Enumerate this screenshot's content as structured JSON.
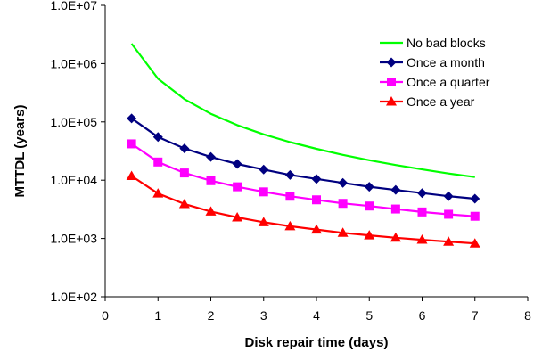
{
  "chart_data": {
    "type": "line",
    "title": "",
    "xlabel": "Disk repair time (days)",
    "ylabel": "MTTDL (years)",
    "xlim": [
      0,
      8
    ],
    "ylim": [
      100,
      10000000
    ],
    "yscale": "log",
    "grid": false,
    "legend_position": "top-right",
    "x_ticks": [
      "0",
      "1",
      "2",
      "3",
      "4",
      "5",
      "6",
      "7",
      "8"
    ],
    "y_ticks": [
      "1.0E+02",
      "1.0E+03",
      "1.0E+04",
      "1.0E+05",
      "1.0E+06",
      "1.0E+07"
    ],
    "x": [
      0.5,
      1,
      1.5,
      2,
      2.5,
      3,
      3.5,
      4,
      4.5,
      5,
      5.5,
      6,
      6.5,
      7
    ],
    "series": [
      {
        "name": "No bad blocks",
        "color": "#00ff00",
        "marker": "none",
        "values": [
          2200000,
          550000,
          245000,
          138000,
          88000,
          61000,
          45000,
          34500,
          27200,
          22000,
          18200,
          15300,
          13000,
          11300
        ]
      },
      {
        "name": "Once a month",
        "color": "#000080",
        "marker": "diamond",
        "values": [
          115000,
          55000,
          35000,
          25000,
          19000,
          15200,
          12300,
          10500,
          9000,
          7700,
          6800,
          6000,
          5300,
          4800
        ]
      },
      {
        "name": "Once a quarter",
        "color": "#ff00ff",
        "marker": "square",
        "values": [
          42000,
          20500,
          13300,
          9800,
          7700,
          6300,
          5300,
          4600,
          4000,
          3600,
          3200,
          2850,
          2600,
          2400
        ]
      },
      {
        "name": "Once a year",
        "color": "#ff0000",
        "marker": "triangle",
        "values": [
          11800,
          5900,
          3900,
          2900,
          2300,
          1900,
          1620,
          1420,
          1250,
          1130,
          1030,
          950,
          880,
          820
        ]
      }
    ]
  }
}
